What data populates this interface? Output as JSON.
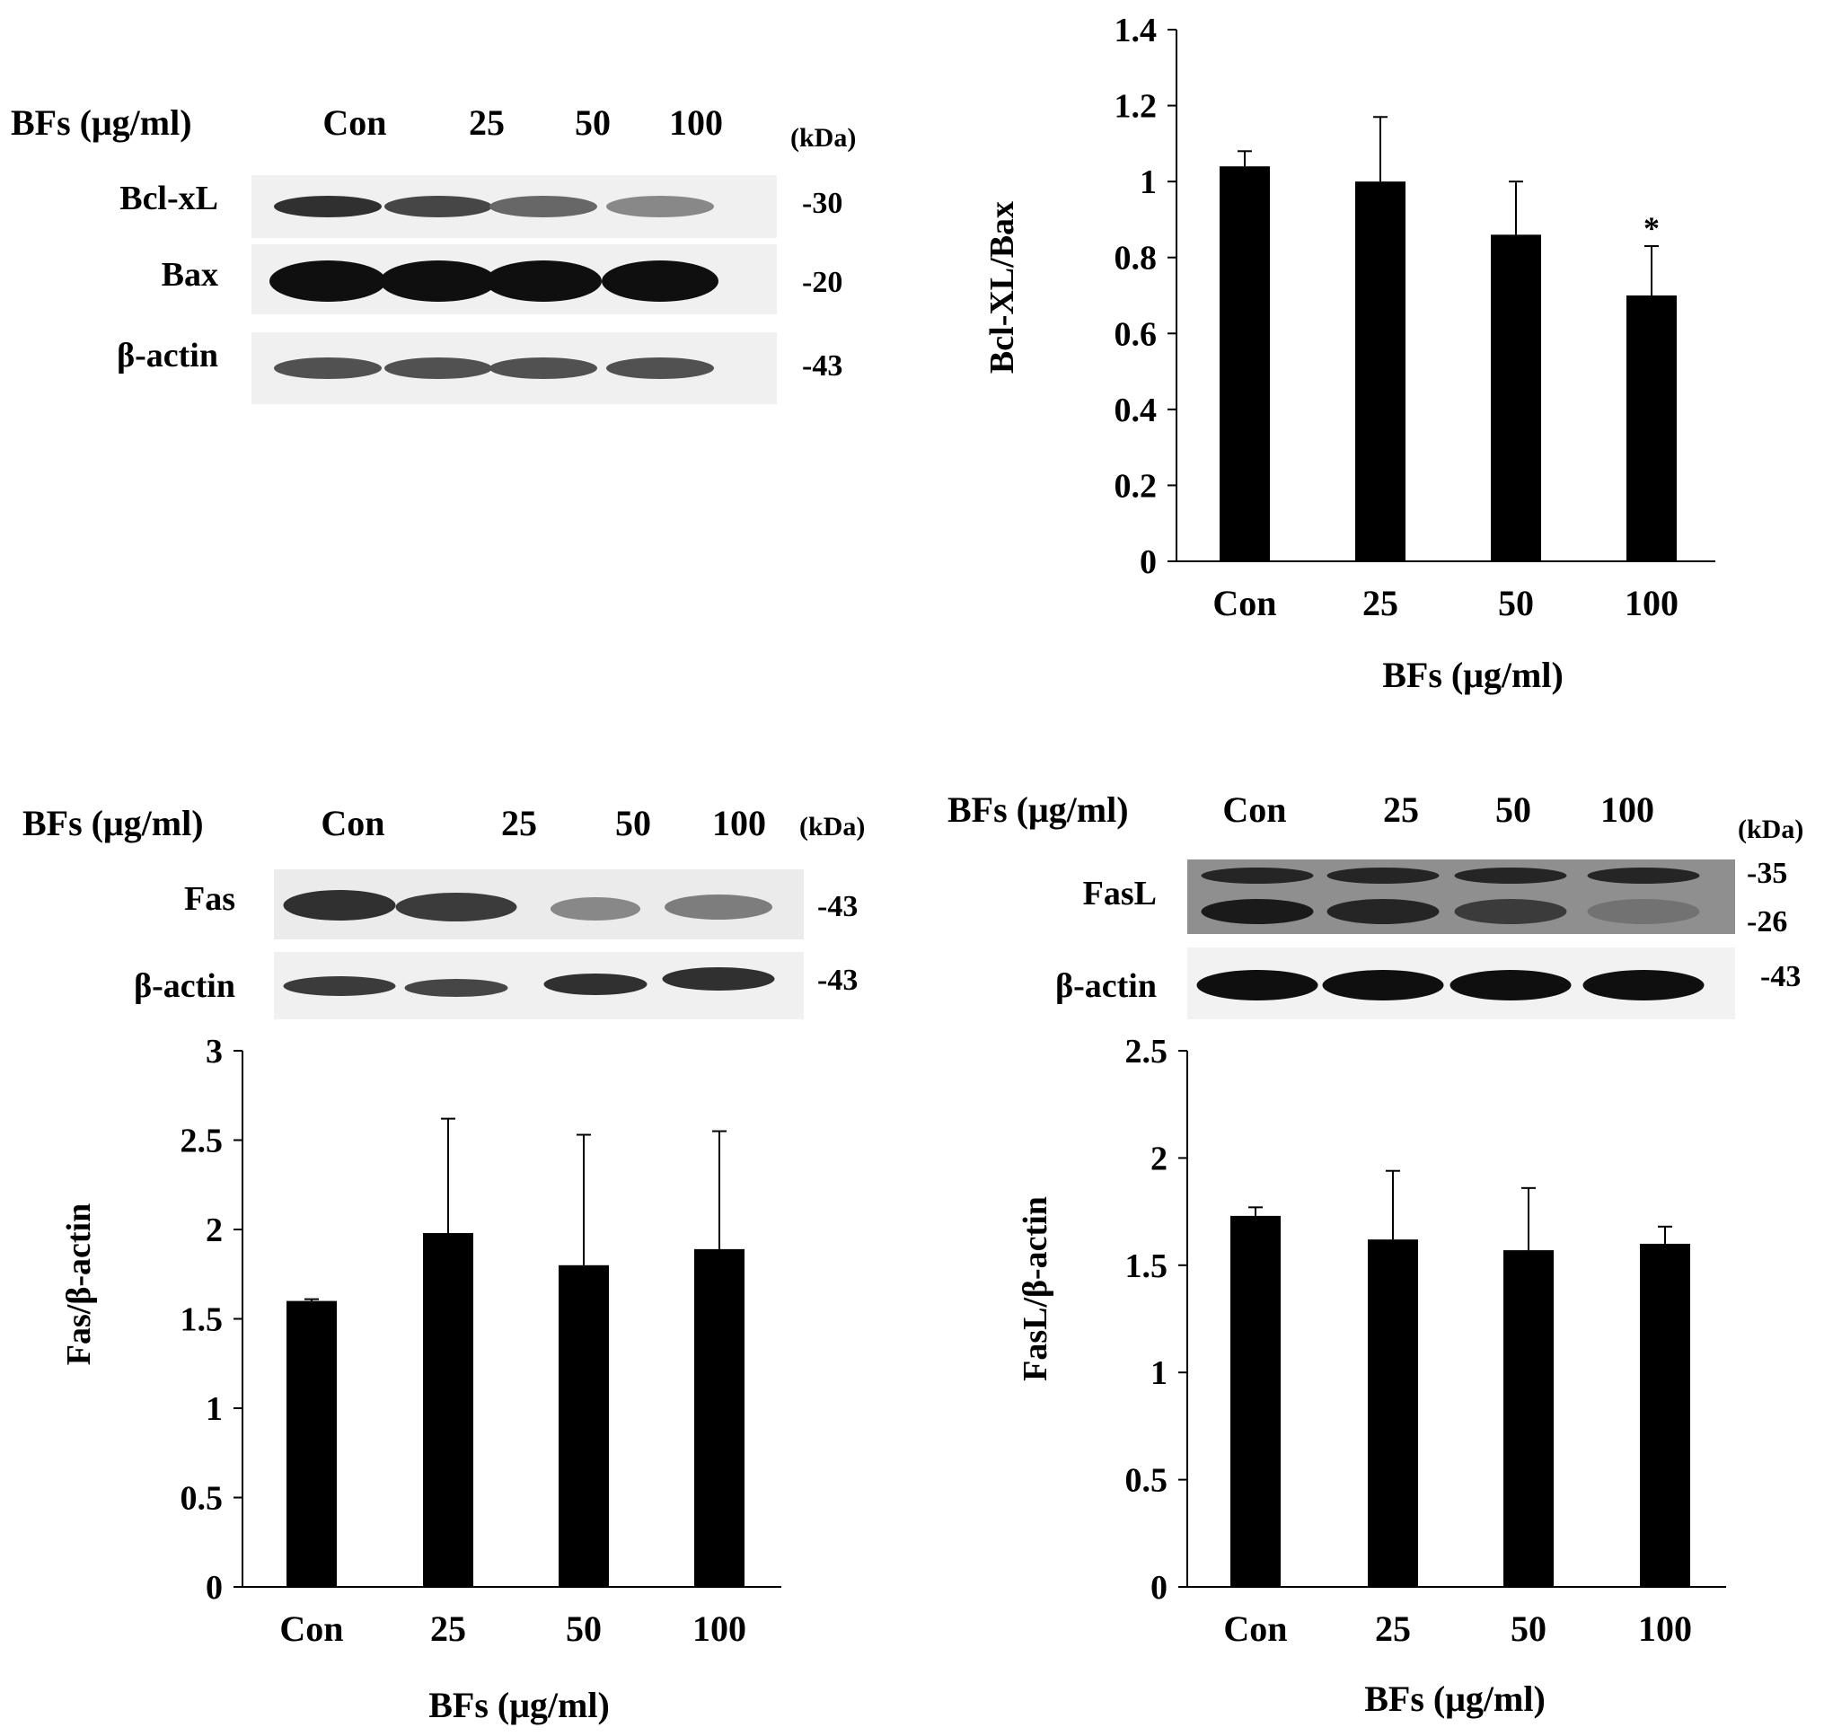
{
  "colors": {
    "bar": "#000000",
    "axis": "#000000",
    "blot_bg": "#e6e6e6",
    "band": "#151515"
  },
  "blots": [
    {
      "id": "bcl",
      "dose_label": "BFs (μg/ml)",
      "lanes": [
        "Con",
        "25",
        "50",
        "100"
      ],
      "kda_unit": "(kDa)",
      "rows": [
        {
          "label": "Bcl-xL",
          "kda": "-30"
        },
        {
          "label": "Bax",
          "kda": "-20"
        },
        {
          "label": "β-actin",
          "kda": "-43"
        }
      ]
    },
    {
      "id": "fas",
      "dose_label": "BFs (μg/ml)",
      "lanes": [
        "Con",
        "25",
        "50",
        "100"
      ],
      "kda_unit": "(kDa)",
      "rows": [
        {
          "label": "Fas",
          "kda": "-43"
        },
        {
          "label": "β-actin",
          "kda": "-43"
        }
      ]
    },
    {
      "id": "fasl",
      "dose_label": "BFs (μg/ml)",
      "lanes": [
        "Con",
        "25",
        "50",
        "100"
      ],
      "kda_unit": "(kDa)",
      "rows": [
        {
          "label": "FasL",
          "kda": [
            "-35",
            "-26"
          ]
        },
        {
          "label": "β-actin",
          "kda": "-43"
        }
      ]
    }
  ],
  "chart_data": [
    {
      "type": "bar",
      "categories": [
        "Con",
        "25",
        "50",
        "100"
      ],
      "values": [
        1.04,
        1.0,
        0.86,
        0.7
      ],
      "errors": [
        0.04,
        0.17,
        0.14,
        0.13
      ],
      "annotations": [
        "",
        "",
        "",
        "*"
      ],
      "ylim": [
        0,
        1.4
      ],
      "yticks": [
        "0",
        "0.2",
        "0.4",
        "0.6",
        "0.8",
        "1",
        "1.2",
        "1.4"
      ],
      "xlabel": "BFs (μg/ml)",
      "ylabel": "Bcl-XL/Bax"
    },
    {
      "type": "bar",
      "categories": [
        "Con",
        "25",
        "50",
        "100"
      ],
      "values": [
        1.6,
        1.98,
        1.8,
        1.89
      ],
      "errors": [
        0.01,
        0.64,
        0.73,
        0.66
      ],
      "annotations": [
        "",
        "",
        "",
        ""
      ],
      "ylim": [
        0,
        3
      ],
      "yticks": [
        "0",
        "0.5",
        "1",
        "1.5",
        "2",
        "2.5",
        "3"
      ],
      "xlabel": "BFs (μg/ml)",
      "ylabel": "Fas/β-actin"
    },
    {
      "type": "bar",
      "categories": [
        "Con",
        "25",
        "50",
        "100"
      ],
      "values": [
        1.73,
        1.62,
        1.57,
        1.6
      ],
      "errors": [
        0.04,
        0.32,
        0.29,
        0.08
      ],
      "annotations": [
        "",
        "",
        "",
        ""
      ],
      "ylim": [
        0,
        2.5
      ],
      "yticks": [
        "0",
        "0.5",
        "1",
        "1.5",
        "2",
        "2.5"
      ],
      "xlabel": "BFs (μg/ml)",
      "ylabel": "FasL/β-actin"
    }
  ],
  "blot_intensity": {
    "bcl": [
      [
        0.85,
        0.75,
        0.6,
        0.45
      ],
      [
        1.0,
        1.0,
        1.0,
        1.0
      ],
      [
        0.7,
        0.7,
        0.7,
        0.7
      ]
    ],
    "fas": [
      [
        0.85,
        0.8,
        0.45,
        0.5
      ],
      [
        0.8,
        0.75,
        0.85,
        0.85
      ]
    ],
    "fasl_top": [
      0.9,
      0.9,
      0.9,
      0.9
    ],
    "fasl_bottom": [
      0.95,
      0.9,
      0.8,
      0.55
    ],
    "fasl_actin": [
      1.0,
      1.0,
      1.0,
      1.0
    ]
  }
}
